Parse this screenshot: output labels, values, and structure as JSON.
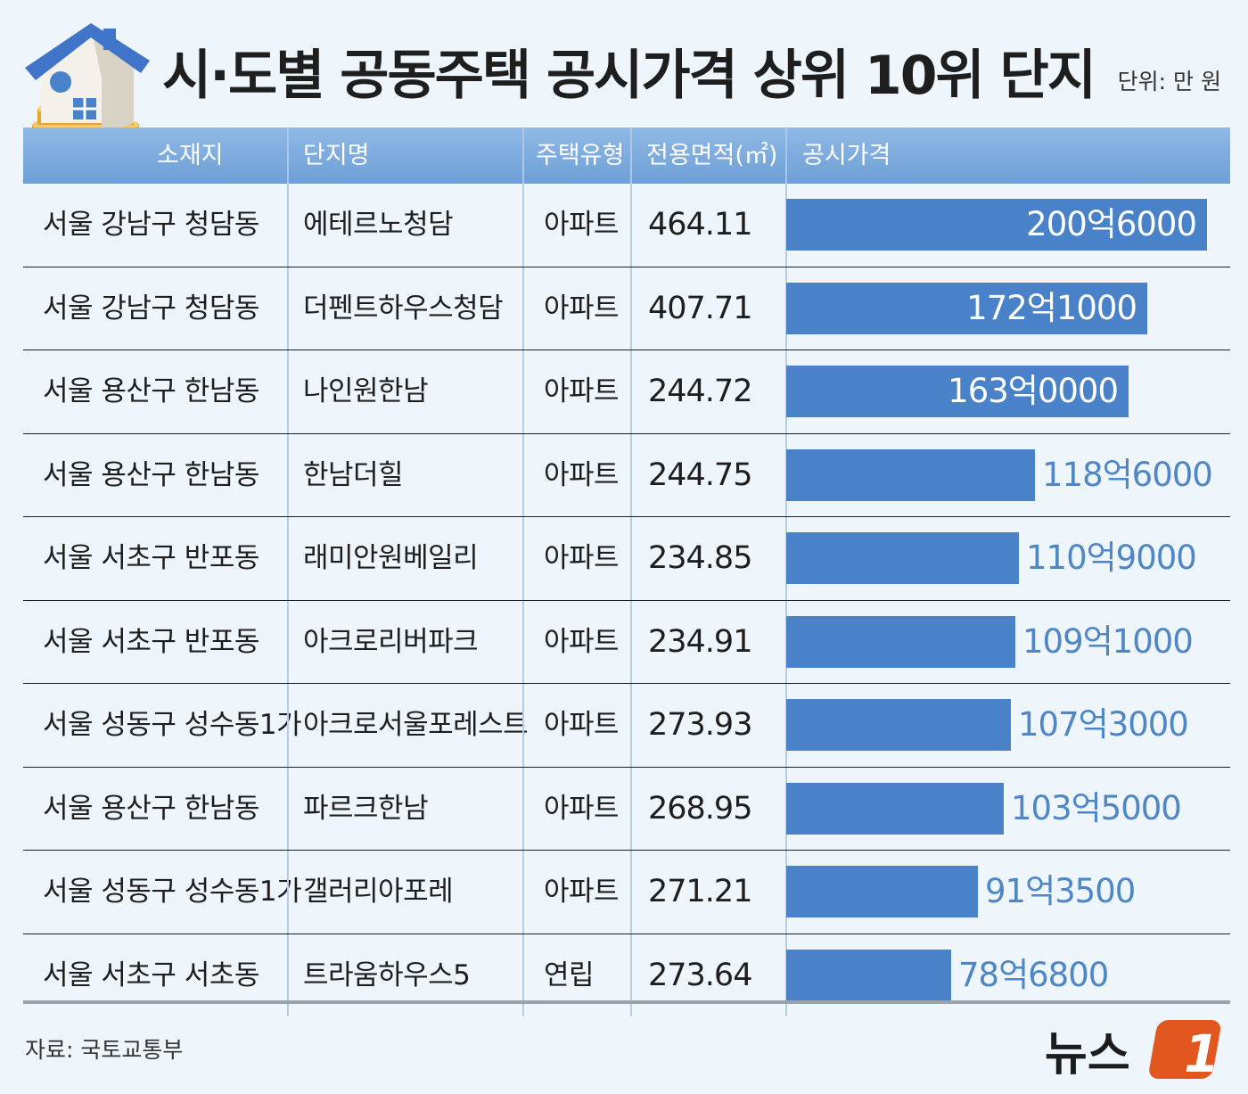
{
  "title": "시·도별 공동주택 공시가격 상위 10위 단지",
  "unit": "단위: 만 원",
  "source": "자료: 국토교통부",
  "brand": "뉴스",
  "brand_mark": "1",
  "headers": {
    "location": "소재지",
    "complex": "단지명",
    "type": "주택유형",
    "area": "전용면적(㎡)",
    "price": "공시가격"
  },
  "colors": {
    "header": "#7aa9dd",
    "bar": "#4a82c9",
    "label_outside": "#4f86c6",
    "brand": "#e2571f"
  },
  "rows": [
    {
      "location": "서울 강남구 청담동",
      "complex": "에테르노청담",
      "type": "아파트",
      "area": "464.11",
      "price_label": "200억6000",
      "price": 2006000
    },
    {
      "location": "서울 강남구 청담동",
      "complex": "더펜트하우스청담",
      "type": "아파트",
      "area": "407.71",
      "price_label": "172억1000",
      "price": 1721000
    },
    {
      "location": "서울 용산구 한남동",
      "complex": "나인원한남",
      "type": "아파트",
      "area": "244.72",
      "price_label": "163억0000",
      "price": 1630000
    },
    {
      "location": "서울 용산구 한남동",
      "complex": "한남더힐",
      "type": "아파트",
      "area": "244.75",
      "price_label": "118억6000",
      "price": 1186000
    },
    {
      "location": "서울 서초구 반포동",
      "complex": "래미안원베일리",
      "type": "아파트",
      "area": "234.85",
      "price_label": "110억9000",
      "price": 1109000
    },
    {
      "location": "서울 서초구 반포동",
      "complex": "아크로리버파크",
      "type": "아파트",
      "area": "234.91",
      "price_label": "109억1000",
      "price": 1091000
    },
    {
      "location": "서울 성동구 성수동1가",
      "complex": "아크로서울포레스트",
      "type": "아파트",
      "area": "273.93",
      "price_label": "107억3000",
      "price": 1073000
    },
    {
      "location": "서울 용산구 한남동",
      "complex": "파르크한남",
      "type": "아파트",
      "area": "268.95",
      "price_label": "103억5000",
      "price": 1035000
    },
    {
      "location": "서울 성동구 성수동1가",
      "complex": "갤러리아포레",
      "type": "아파트",
      "area": "271.21",
      "price_label": "91억3500",
      "price": 913500
    },
    {
      "location": "서울 서초구 서초동",
      "complex": "트라움하우스5",
      "type": "연립",
      "area": "273.64",
      "price_label": "78억6800",
      "price": 786800
    }
  ],
  "chart_data": {
    "type": "bar",
    "title": "시·도별 공동주택 공시가격 상위 10위 단지",
    "unit": "단위: 만 원",
    "categories": [
      "에테르노청담",
      "더펜트하우스청담",
      "나인원한남",
      "한남더힐",
      "래미안원베일리",
      "아크로리버파크",
      "아크로서울포레스트",
      "파르크한남",
      "갤러리아포레",
      "트라움하우스5"
    ],
    "values": [
      2006000,
      1721000,
      1630000,
      1186000,
      1109000,
      1091000,
      1073000,
      1035000,
      913500,
      786800
    ],
    "data_labels": [
      "200억6000",
      "172억1000",
      "163억0000",
      "118억6000",
      "110억9000",
      "109억1000",
      "107억3000",
      "103억5000",
      "91억3500",
      "78억6800"
    ],
    "orientation": "horizontal"
  }
}
